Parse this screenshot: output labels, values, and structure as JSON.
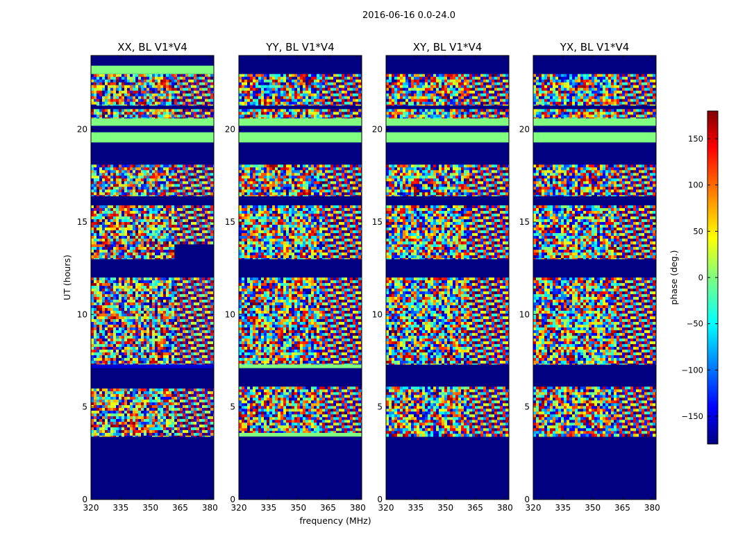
{
  "figure_title": "2016-06-16 0.0-24.0",
  "axis": {
    "xlabel": "frequency (MHz)",
    "ylabel": "UT (hours)",
    "xlim": [
      320,
      382
    ],
    "ylim": [
      0,
      24
    ],
    "xticks": [
      "320",
      "335",
      "350",
      "365",
      "380"
    ],
    "yticks": [
      "0",
      "5",
      "10",
      "15",
      "20"
    ]
  },
  "colorbar": {
    "label": "phase (deg.)",
    "range": [
      -180,
      180
    ],
    "ticks": [
      "150",
      "100",
      "50",
      "0",
      "−50",
      "−100",
      "−150"
    ],
    "colormap": "jet",
    "jet_colors": [
      "#000080",
      "#0000ff",
      "#00ffff",
      "#80ff80",
      "#ffff00",
      "#ff0000",
      "#800000"
    ]
  },
  "chart_data": {
    "type": "heatmap",
    "title": "2016-06-16 0.0-24.0",
    "xlabel": "frequency (MHz)",
    "ylabel": "UT (hours)",
    "x_range": [
      320,
      382
    ],
    "y_range": [
      0,
      24
    ],
    "value_label": "phase (deg.)",
    "value_range": [
      -180,
      180
    ],
    "panels": [
      {
        "title": "XX, BL V1*V4",
        "flagged_value": -180,
        "uniform_bands": [
          {
            "t": [
              19.3,
              19.85
            ],
            "phase": 0
          },
          {
            "t": [
              20.2,
              20.6
            ],
            "phase": 0
          },
          {
            "t": [
              23.0,
              23.45
            ],
            "phase": 0
          },
          {
            "t": [
              7.1,
              7.3
            ],
            "phase": -150
          }
        ],
        "data_segments": [
          {
            "t": [
              3.4,
              6.0
            ]
          },
          {
            "t": [
              7.3,
              12.0
            ]
          },
          {
            "t": [
              13.0,
              13.8
            ],
            "f_max": 362
          },
          {
            "t": [
              13.8,
              15.9
            ]
          },
          {
            "t": [
              16.4,
              18.1
            ]
          },
          {
            "t": [
              20.6,
              21.1
            ]
          },
          {
            "t": [
              21.3,
              23.0
            ]
          }
        ]
      },
      {
        "title": "YY, BL V1*V4",
        "flagged_value": -180,
        "uniform_bands": [
          {
            "t": [
              19.3,
              19.85
            ],
            "phase": 0
          },
          {
            "t": [
              20.2,
              20.6
            ],
            "phase": 0
          },
          {
            "t": [
              3.4,
              3.6
            ],
            "phase": 0
          },
          {
            "t": [
              7.1,
              7.3
            ],
            "phase": 0
          }
        ],
        "data_segments": [
          {
            "t": [
              3.6,
              6.1
            ]
          },
          {
            "t": [
              7.3,
              12.0
            ]
          },
          {
            "t": [
              13.0,
              13.8
            ]
          },
          {
            "t": [
              13.8,
              15.9
            ]
          },
          {
            "t": [
              16.4,
              18.1
            ]
          },
          {
            "t": [
              20.6,
              21.1
            ]
          },
          {
            "t": [
              21.3,
              23.0
            ]
          }
        ]
      },
      {
        "title": "XY, BL V1*V4",
        "flagged_value": -180,
        "uniform_bands": [
          {
            "t": [
              19.3,
              19.85
            ],
            "phase": 0
          },
          {
            "t": [
              20.2,
              20.6
            ],
            "phase": 0
          }
        ],
        "data_segments": [
          {
            "t": [
              3.4,
              6.1
            ]
          },
          {
            "t": [
              7.3,
              12.0
            ]
          },
          {
            "t": [
              13.0,
              13.8
            ]
          },
          {
            "t": [
              13.8,
              15.9
            ]
          },
          {
            "t": [
              16.4,
              18.1
            ]
          },
          {
            "t": [
              20.6,
              21.1
            ]
          },
          {
            "t": [
              21.3,
              23.0
            ]
          }
        ]
      },
      {
        "title": "YX, BL V1*V4",
        "flagged_value": -180,
        "uniform_bands": [
          {
            "t": [
              19.3,
              19.85
            ],
            "phase": 0
          },
          {
            "t": [
              20.2,
              20.6
            ],
            "phase": 0
          }
        ],
        "data_segments": [
          {
            "t": [
              3.4,
              6.1
            ]
          },
          {
            "t": [
              7.3,
              12.0
            ]
          },
          {
            "t": [
              13.0,
              13.8
            ]
          },
          {
            "t": [
              13.8,
              15.9
            ]
          },
          {
            "t": [
              16.4,
              18.1
            ]
          },
          {
            "t": [
              20.6,
              21.1
            ]
          },
          {
            "t": [
              21.3,
              23.0
            ]
          }
        ]
      }
    ]
  }
}
